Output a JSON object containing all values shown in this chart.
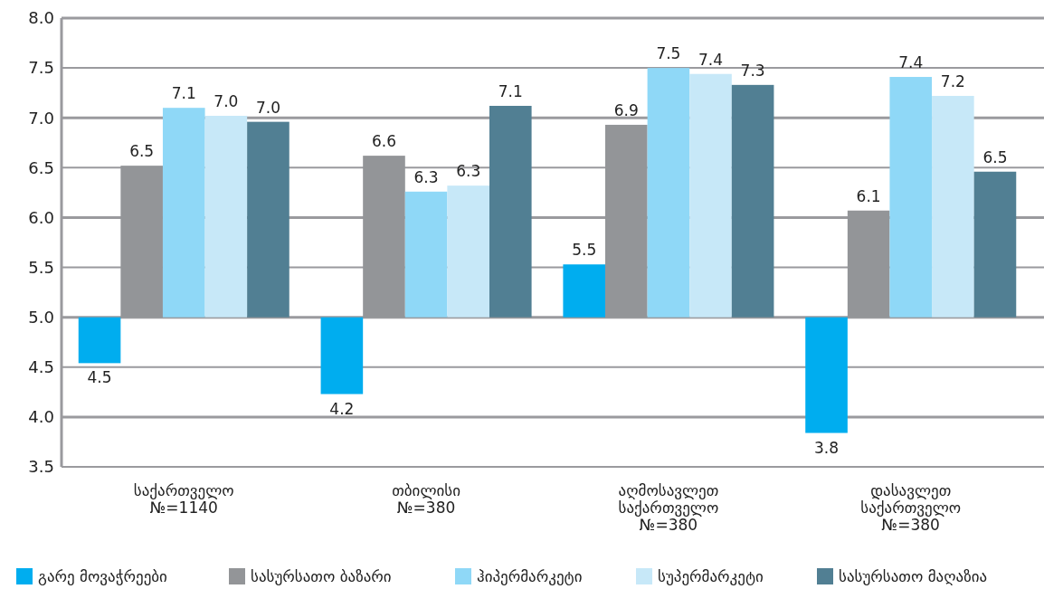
{
  "chart_data": {
    "type": "bar",
    "categories": [
      "საქართველო\n№=1140",
      "თბილისი\n№=380",
      "აღმოსავლეთ\nსაქართველო\n№=380",
      "დასავლეთ\nსაქართველო\n№=380"
    ],
    "series": [
      {
        "name": "გარე მოვაჭრეები",
        "color": "#00adef",
        "base": [
          5,
          5,
          5,
          5
        ],
        "values": [
          -0.46,
          -0.77,
          0.53,
          -1.16
        ],
        "value_labels": [
          "4.5",
          "4.2",
          "5.5",
          "3.8"
        ]
      },
      {
        "name": "სასურსათო ბაზარი",
        "color": "#939598",
        "base": [
          5,
          5,
          5,
          5
        ],
        "values": [
          1.52,
          1.62,
          1.93,
          1.07
        ],
        "value_labels": [
          "6.5",
          "6.6",
          "6.9",
          "6.1"
        ]
      },
      {
        "name": "ჰიპერმარკეტი",
        "color": "#8fd8f7",
        "base": [
          5,
          5,
          5,
          5
        ],
        "values": [
          2.1,
          1.26,
          2.5,
          2.41
        ],
        "value_labels": [
          "7.1",
          "6.3",
          "7.5",
          "7.4"
        ]
      },
      {
        "name": "სუპერმარკეტი",
        "color": "#c7e8f8",
        "base": [
          5,
          5,
          5,
          5
        ],
        "values": [
          2.02,
          1.32,
          2.44,
          2.22
        ],
        "value_labels": [
          "7.0",
          "6.3",
          "7.4",
          "7.2"
        ]
      },
      {
        "name": "სასურსათო მაღაზია",
        "color": "#517f93",
        "base": [
          5,
          5,
          5,
          5
        ],
        "values": [
          1.96,
          2.12,
          2.33,
          1.46
        ],
        "value_labels": [
          "7.0",
          "7.1",
          "7.3",
          "6.5"
        ]
      }
    ],
    "ylim": [
      3.5,
      8.0
    ],
    "yticks": [
      {
        "value": 3.5,
        "label": "3.5"
      },
      {
        "value": 4,
        "label": "4.0"
      },
      {
        "value": 4.5,
        "label": "4.5"
      },
      {
        "value": 5,
        "label": "5.0"
      },
      {
        "value": 5.5,
        "label": "5.5"
      },
      {
        "value": 6,
        "label": "6.0"
      },
      {
        "value": 6.5,
        "label": "6.5"
      },
      {
        "value": 7,
        "label": "7.0"
      },
      {
        "value": 7.5,
        "label": "7.5"
      },
      {
        "value": 8,
        "label": "8.0"
      }
    ],
    "grid": "y",
    "legend": "bottom"
  }
}
